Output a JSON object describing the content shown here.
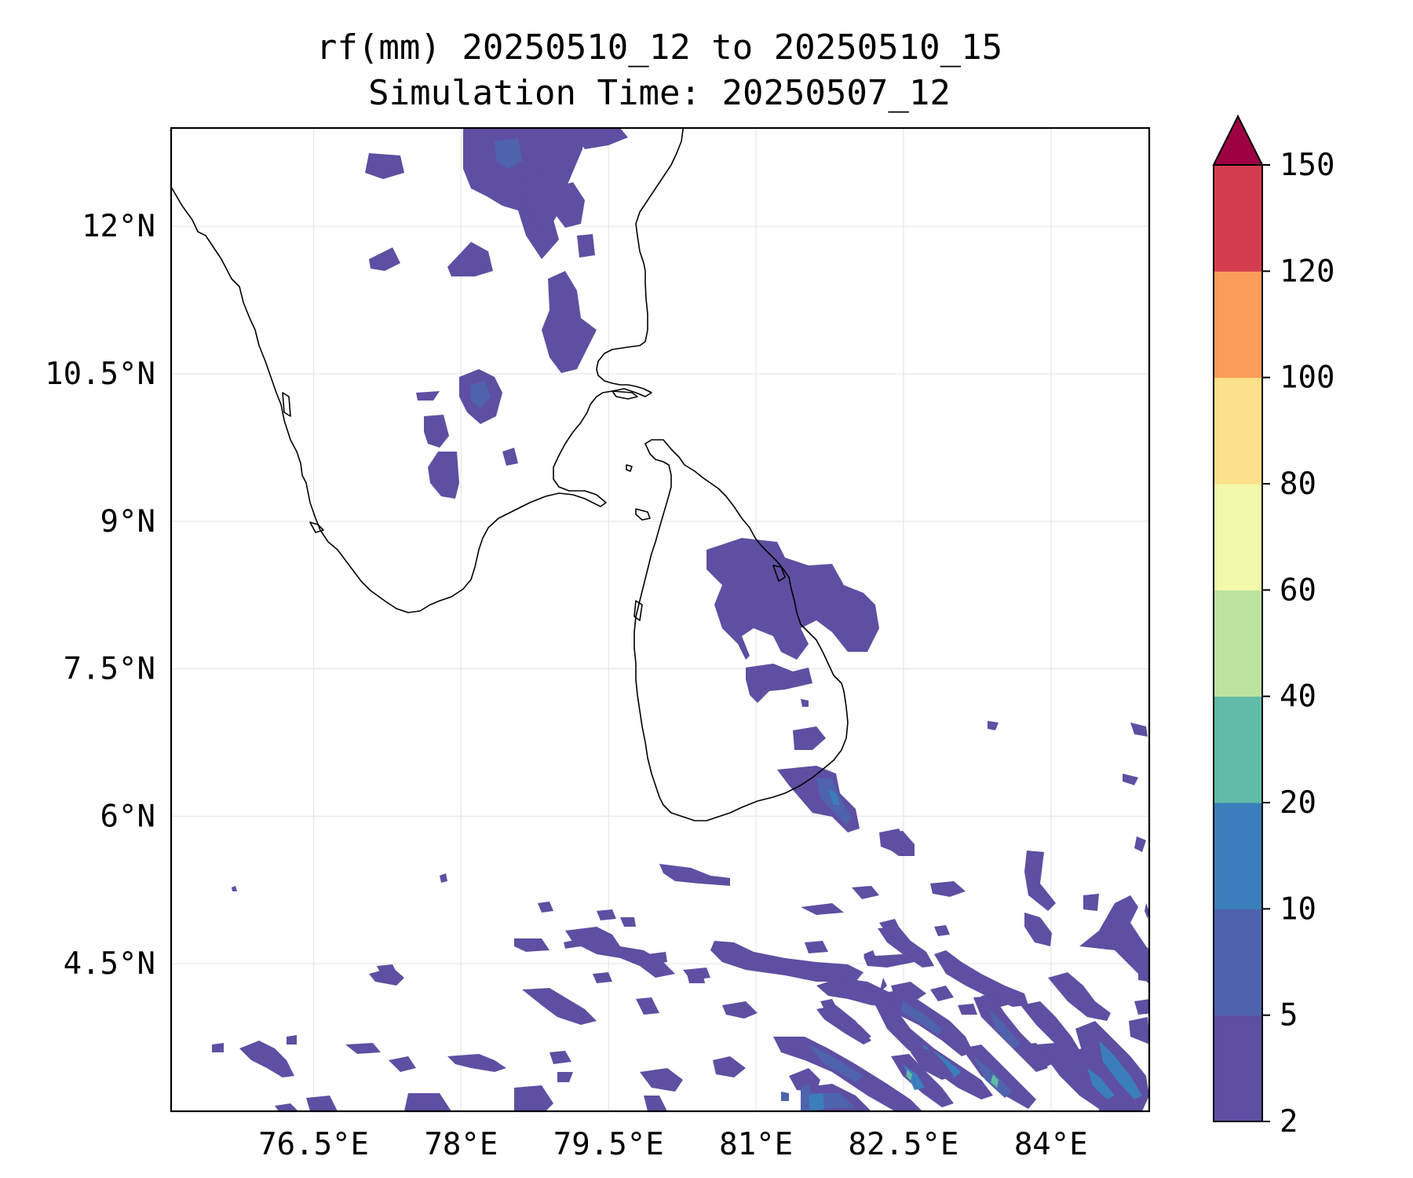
{
  "title": {
    "line1": "rf(mm) 20250510_12 to 20250510_15",
    "line2": "Simulation Time: 20250507_12"
  },
  "map": {
    "projection": "PlateCarree",
    "extent_lon": [
      75.05,
      85.0
    ],
    "extent_lat": [
      3.0,
      13.0
    ],
    "gridlines": true,
    "coastline_color": "#000000",
    "lon_ticks": [
      {
        "value": 76.5,
        "label": "76.5°E"
      },
      {
        "value": 78.0,
        "label": "78°E"
      },
      {
        "value": 79.5,
        "label": "79.5°E"
      },
      {
        "value": 81.0,
        "label": "81°E"
      },
      {
        "value": 82.5,
        "label": "82.5°E"
      },
      {
        "value": 84.0,
        "label": "84°E"
      }
    ],
    "lat_ticks": [
      {
        "value": 12.0,
        "label": "12°N"
      },
      {
        "value": 10.5,
        "label": "10.5°N"
      },
      {
        "value": 9.0,
        "label": "9°N"
      },
      {
        "value": 7.5,
        "label": "7.5°N"
      },
      {
        "value": 6.0,
        "label": "6°N"
      },
      {
        "value": 4.5,
        "label": "4.5°N"
      }
    ]
  },
  "colorbar": {
    "orientation": "vertical",
    "extend": "max",
    "levels": [
      2,
      5,
      10,
      20,
      40,
      60,
      80,
      100,
      120,
      150
    ],
    "labels": [
      "2",
      "5",
      "10",
      "20",
      "40",
      "60",
      "80",
      "100",
      "120",
      "150"
    ],
    "colors": [
      "#5e4fa2",
      "#4f63ad",
      "#3a7fbc",
      "#60bba8",
      "#bde3a1",
      "#f2f9aa",
      "#fde08b",
      "#f99d59",
      "#d43d4f"
    ],
    "over_color": "#9e0142"
  },
  "rain_regions": [
    {
      "name": "tamil-nadu-north",
      "level": "2-5",
      "lon": 78.2,
      "lat": 12.6
    },
    {
      "name": "tamil-nadu-central",
      "level": "2-5",
      "lon": 78.0,
      "lat": 10.2
    },
    {
      "name": "sri-lanka-northeast",
      "level": "2-5",
      "lon": 81.2,
      "lat": 8.0
    },
    {
      "name": "sri-lanka-southeast",
      "level": "5-10",
      "lon": 81.6,
      "lat": 6.2
    },
    {
      "name": "southern-ocean-bands",
      "level": "5-20",
      "lon": 82.5,
      "lat": 3.8
    }
  ]
}
